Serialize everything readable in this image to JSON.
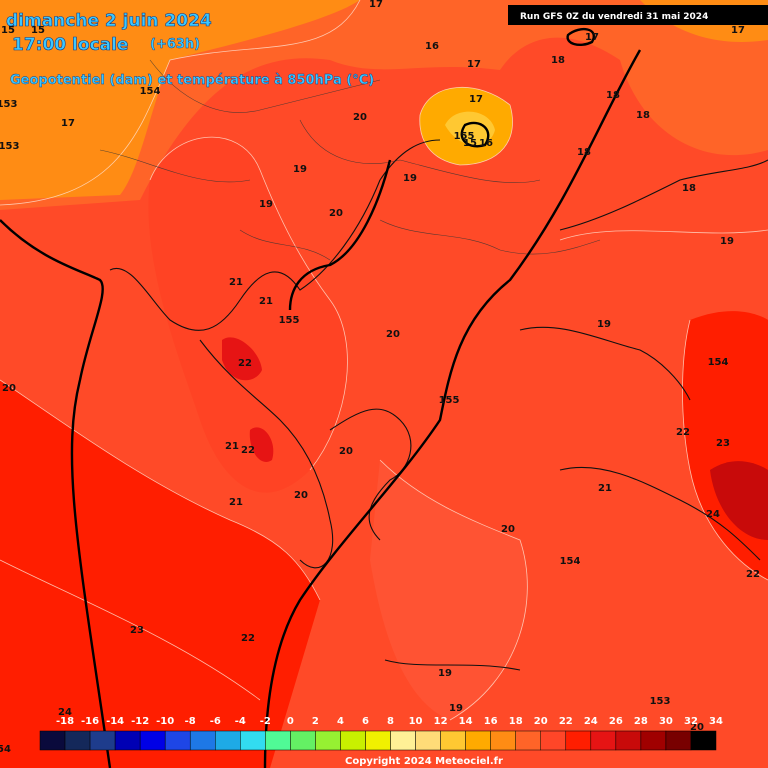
{
  "header": {
    "date": "dimanche 2 juin 2024",
    "time": "17:00 locale",
    "lead": "(+63h)",
    "subtitle": "Geopotentiel (dam) et température à 850hPa (°C)",
    "run": "Run GFS 0Z du vendredi 31 mai 2024"
  },
  "map_labels": [
    17,
    16,
    17,
    18,
    17,
    17,
    18,
    18,
    17,
    155,
    15,
    16,
    18,
    18,
    19,
    19,
    20,
    19,
    19,
    19,
    20,
    17,
    154,
    153,
    153,
    15,
    15,
    21,
    21,
    155,
    20,
    22,
    154,
    20,
    155,
    21,
    22,
    20,
    22,
    23,
    21,
    21,
    20,
    24,
    20,
    154,
    22,
    23,
    22,
    19,
    19,
    153,
    24,
    20,
    54
  ],
  "colorbar": {
    "ticks": [
      -18,
      -16,
      -14,
      -12,
      -10,
      -8,
      -6,
      -4,
      -2,
      0,
      2,
      4,
      6,
      8,
      10,
      12,
      14,
      16,
      18,
      20,
      22,
      24,
      26,
      28,
      30,
      32,
      34
    ],
    "colors": [
      "#0a0a3c",
      "#14285a",
      "#1e3c8c",
      "#0000b4",
      "#0000e6",
      "#1e46e6",
      "#1e78e6",
      "#1eaae6",
      "#32dcf0",
      "#50fa96",
      "#64f064",
      "#96f032",
      "#c8f000",
      "#f0f000",
      "#fff096",
      "#ffdc78",
      "#ffc832",
      "#ffaa00",
      "#ff8c14",
      "#ff6428",
      "#ff4628",
      "#ff1e00",
      "#e61414",
      "#c80a0a",
      "#a00000",
      "#780000",
      "#000000"
    ]
  },
  "footer": {
    "copyright": "Copyright 2024 Meteociel.fr"
  }
}
